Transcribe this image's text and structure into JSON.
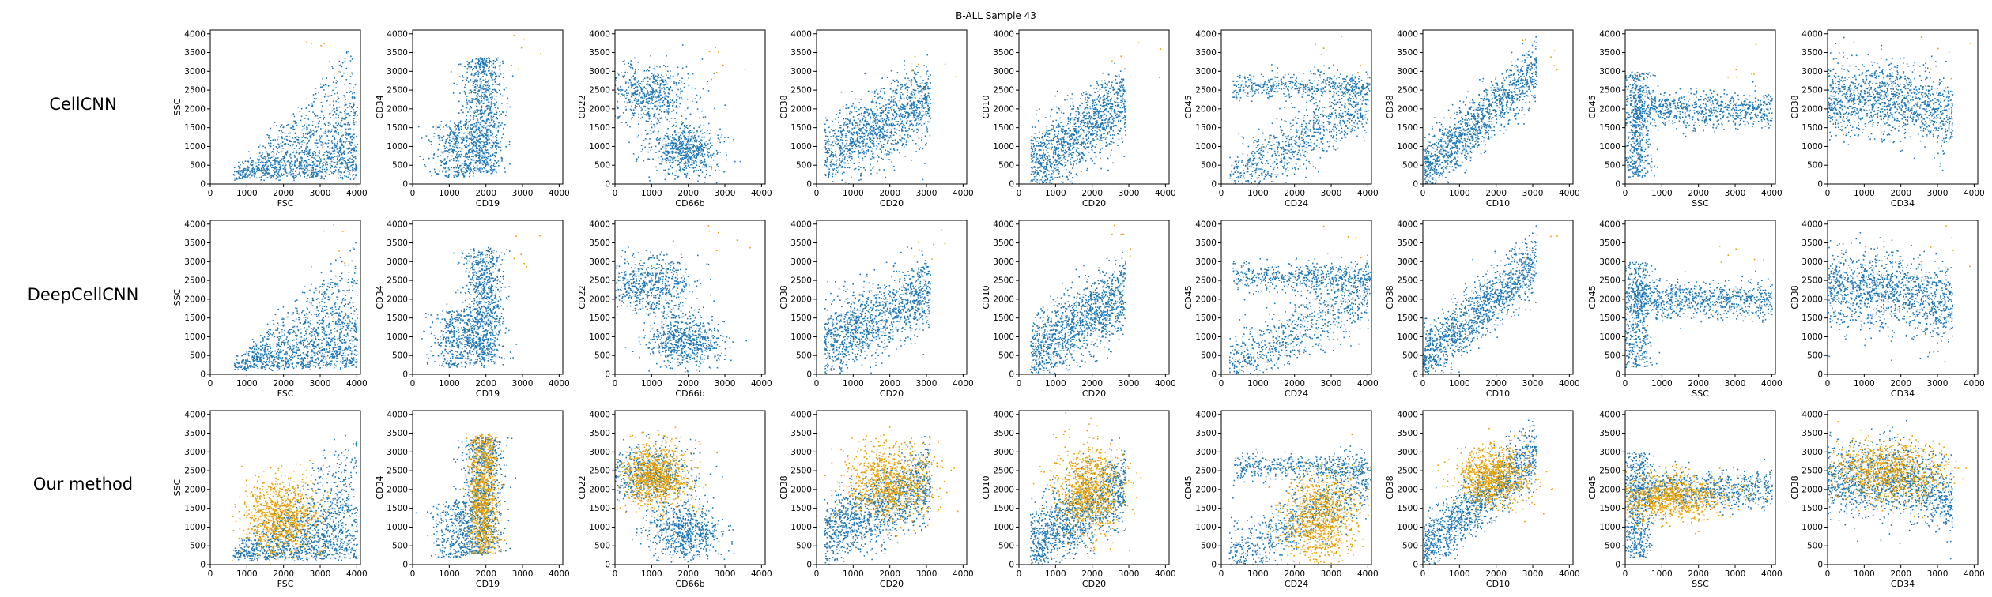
{
  "title": "B-ALL Sample 43",
  "colors": {
    "base": "#1f77b4",
    "highlight": "#e8a000"
  },
  "axis": {
    "xlim": [
      0,
      4100
    ],
    "ylim": [
      0,
      4100
    ],
    "xticks": [
      0,
      1000,
      2000,
      3000,
      4000
    ],
    "yticks": [
      0,
      500,
      1000,
      1500,
      2000,
      2500,
      3000,
      3500,
      4000
    ]
  },
  "rows": [
    {
      "label": "CellCNN",
      "highlight_level": "few"
    },
    {
      "label": "DeepCellCNN",
      "highlight_level": "few"
    },
    {
      "label": "Our method",
      "highlight_level": "many"
    }
  ],
  "chart_data": [
    {
      "type": "scatter",
      "xlabel": "FSC",
      "ylabel": "SSC"
    },
    {
      "type": "scatter",
      "xlabel": "CD19",
      "ylabel": "CD34"
    },
    {
      "type": "scatter",
      "xlabel": "CD66b",
      "ylabel": "CD22"
    },
    {
      "type": "scatter",
      "xlabel": "CD20",
      "ylabel": "CD38"
    },
    {
      "type": "scatter",
      "xlabel": "CD20",
      "ylabel": "CD10"
    },
    {
      "type": "scatter",
      "xlabel": "CD24",
      "ylabel": "CD45"
    },
    {
      "type": "scatter",
      "xlabel": "CD10",
      "ylabel": "CD38"
    },
    {
      "type": "scatter",
      "xlabel": "SSC",
      "ylabel": "CD45"
    },
    {
      "type": "scatter",
      "xlabel": "CD34",
      "ylabel": "CD38"
    }
  ]
}
